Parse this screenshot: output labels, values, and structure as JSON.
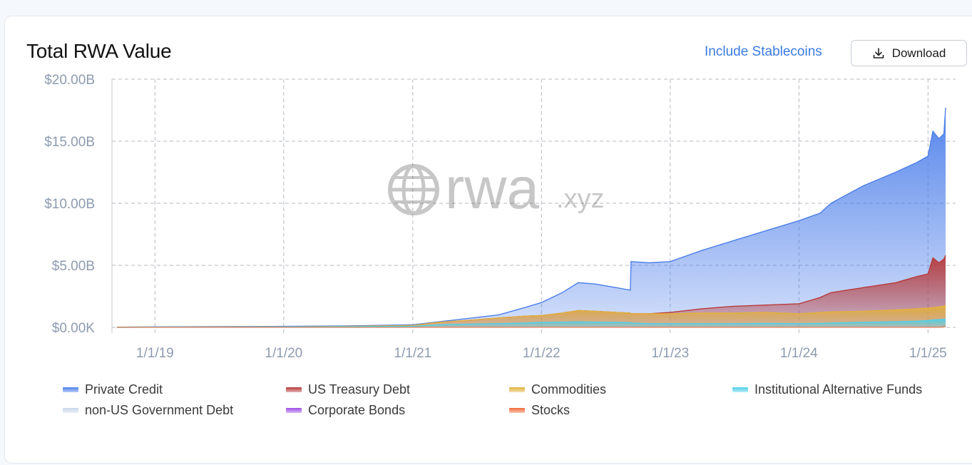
{
  "header": {
    "title": "Total RWA Value",
    "include_stablecoins_label": "Include Stablecoins",
    "download_label": "Download",
    "download_icon": "download-icon"
  },
  "watermark": {
    "text": "rwa",
    "suffix": ".xyz",
    "icon": "globe-icon"
  },
  "colors": {
    "private_credit": "#4d7fea",
    "us_treasury": "#b83a3a",
    "commodities": "#e2b13c",
    "institutional_funds": "#4fd0e8",
    "non_us_gov": "#c9d6ea",
    "corporate_bonds": "#9b4de8",
    "stocks": "#f06a3a"
  },
  "chart_data": {
    "type": "area",
    "title": "Total RWA Value",
    "xlabel": "",
    "ylabel": "",
    "grid": true,
    "legend_placement": "bottom",
    "x_ticks": [
      "1/1/19",
      "1/1/20",
      "1/1/21",
      "1/1/22",
      "1/1/23",
      "1/1/24",
      "1/1/25"
    ],
    "y_ticks": [
      "$0.00K",
      "$5.00B",
      "$10.00B",
      "$15.00B",
      "$20.00B"
    ],
    "ylim": [
      0,
      20
    ],
    "y_unit": "B USD",
    "x": [
      "2018-09-15",
      "2019-01-01",
      "2019-07-01",
      "2020-01-01",
      "2020-07-01",
      "2021-01-01",
      "2021-03-15",
      "2021-06-01",
      "2021-09-01",
      "2021-11-15",
      "2022-01-01",
      "2022-03-01",
      "2022-04-15",
      "2022-06-01",
      "2022-08-01",
      "2022-09-10",
      "2022-09-12",
      "2022-11-01",
      "2023-01-01",
      "2023-04-01",
      "2023-07-01",
      "2023-10-01",
      "2024-01-01",
      "2024-03-01",
      "2024-04-01",
      "2024-07-01",
      "2024-10-01",
      "2024-12-01",
      "2025-01-01",
      "2025-01-15",
      "2025-02-01",
      "2025-02-15",
      "2025-02-20"
    ],
    "series": [
      {
        "name": "Private Credit",
        "key": "private_credit",
        "values": [
          0.02,
          0.04,
          0.06,
          0.08,
          0.12,
          0.2,
          0.45,
          0.7,
          1.0,
          1.6,
          2.0,
          2.8,
          3.6,
          3.5,
          3.2,
          3.0,
          5.3,
          5.2,
          5.3,
          6.2,
          7.0,
          7.8,
          8.6,
          9.2,
          10.0,
          11.4,
          12.5,
          13.3,
          13.8,
          15.8,
          15.2,
          15.6,
          17.7
        ]
      },
      {
        "name": "US Treasury Debt",
        "key": "us_treasury",
        "values": [
          0.0,
          0.0,
          0.0,
          0.0,
          0.0,
          0.0,
          0.0,
          0.0,
          0.0,
          0.0,
          0.0,
          0.05,
          0.1,
          0.2,
          0.4,
          0.6,
          0.8,
          1.0,
          1.2,
          1.5,
          1.7,
          1.8,
          1.9,
          2.4,
          2.8,
          3.2,
          3.6,
          4.1,
          4.3,
          5.6,
          5.2,
          5.5,
          5.8
        ]
      },
      {
        "name": "Commodities",
        "key": "commodities",
        "values": [
          0.01,
          0.02,
          0.03,
          0.04,
          0.08,
          0.15,
          0.4,
          0.55,
          0.75,
          0.9,
          0.95,
          1.15,
          1.35,
          1.3,
          1.2,
          1.15,
          1.1,
          1.1,
          1.1,
          1.15,
          1.15,
          1.2,
          1.1,
          1.2,
          1.25,
          1.3,
          1.4,
          1.5,
          1.55,
          1.6,
          1.65,
          1.7,
          1.8
        ]
      },
      {
        "name": "Institutional Alternative Funds",
        "key": "institutional_funds",
        "values": [
          0.0,
          0.01,
          0.02,
          0.03,
          0.05,
          0.08,
          0.2,
          0.25,
          0.3,
          0.35,
          0.4,
          0.42,
          0.44,
          0.42,
          0.4,
          0.38,
          0.35,
          0.3,
          0.3,
          0.3,
          0.3,
          0.32,
          0.3,
          0.32,
          0.35,
          0.4,
          0.45,
          0.5,
          0.55,
          0.6,
          0.62,
          0.65,
          0.65
        ]
      },
      {
        "name": "non-US Government Debt",
        "key": "non_us_gov",
        "values": [
          0,
          0,
          0,
          0,
          0,
          0,
          0,
          0,
          0,
          0,
          0,
          0,
          0,
          0,
          0,
          0,
          0,
          0,
          0,
          0,
          0,
          0,
          0,
          0,
          0,
          0,
          0,
          0,
          0,
          0,
          0,
          0,
          0
        ]
      },
      {
        "name": "Corporate Bonds",
        "key": "corporate_bonds",
        "values": [
          0,
          0,
          0,
          0,
          0,
          0,
          0,
          0,
          0,
          0,
          0,
          0,
          0,
          0,
          0,
          0,
          0,
          0,
          0,
          0,
          0,
          0,
          0,
          0,
          0,
          0,
          0,
          0,
          0,
          0,
          0,
          0,
          0
        ]
      },
      {
        "name": "Stocks",
        "key": "stocks",
        "values": [
          0,
          0,
          0,
          0,
          0,
          0,
          0,
          0,
          0,
          0,
          0,
          0,
          0,
          0,
          0,
          0,
          0,
          0,
          0,
          0,
          0,
          0,
          0,
          0,
          0,
          0,
          0,
          0,
          0,
          0,
          0,
          0.05,
          0.05
        ]
      }
    ]
  },
  "legend": [
    {
      "label": "Private Credit",
      "key": "private_credit"
    },
    {
      "label": "US Treasury Debt",
      "key": "us_treasury"
    },
    {
      "label": "Commodities",
      "key": "commodities"
    },
    {
      "label": "Institutional Alternative Funds",
      "key": "institutional_funds"
    },
    {
      "label": "non-US Government Debt",
      "key": "non_us_gov"
    },
    {
      "label": "Corporate Bonds",
      "key": "corporate_bonds"
    },
    {
      "label": "Stocks",
      "key": "stocks"
    }
  ]
}
